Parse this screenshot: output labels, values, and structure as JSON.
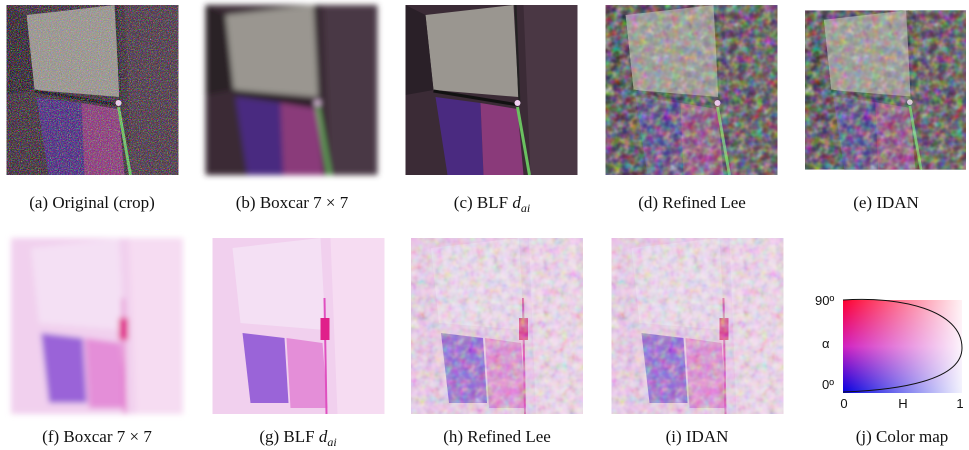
{
  "top_row": [
    {
      "label": "(a)",
      "text": "Original (crop)"
    },
    {
      "label": "(b)",
      "text": "Boxcar",
      "math": "7 × 7"
    },
    {
      "label": "(c)",
      "text": "BLF",
      "math": "d",
      "sub": "ai"
    },
    {
      "label": "(d)",
      "text": "Refined Lee"
    },
    {
      "label": "(e)",
      "text": "IDAN"
    }
  ],
  "bottom_row": [
    {
      "label": "(f)",
      "text": "Boxcar",
      "math": "7 × 7"
    },
    {
      "label": "(g)",
      "text": "BLF",
      "math": "d",
      "sub": "ai"
    },
    {
      "label": "(h)",
      "text": "Refined Lee"
    },
    {
      "label": "(i)",
      "text": "IDAN"
    },
    {
      "label": "(j)",
      "text": "Color map"
    }
  ],
  "color_map": {
    "y_top": "90º",
    "y_label": "α",
    "y_bottom": "0º",
    "x_left": "0",
    "x_label": "H",
    "x_right": "1"
  }
}
